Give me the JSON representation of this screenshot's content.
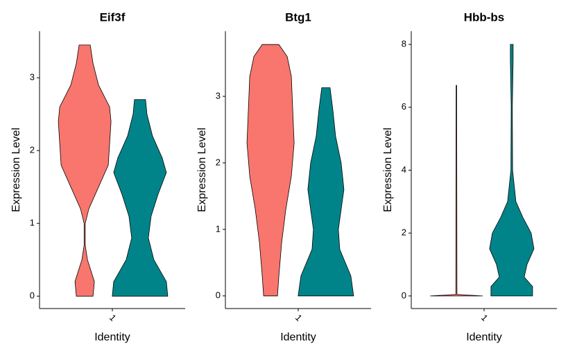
{
  "chart_data": [
    {
      "type": "violin",
      "title": "Eif3f",
      "xlabel": "Identity",
      "ylabel": "Expression Level",
      "categories": [
        "1"
      ],
      "ylim": [
        -0.17,
        3.64
      ],
      "yticks": [
        0,
        1,
        2,
        3
      ],
      "series": [
        {
          "color": "#f8766d",
          "y": [
            0,
            0.2,
            0.5,
            0.7,
            1.0,
            1.2,
            1.5,
            1.8,
            2.1,
            2.4,
            2.6,
            2.9,
            3.2,
            3.45
          ],
          "width": [
            0.3,
            0.35,
            0.1,
            0.02,
            0.02,
            0.15,
            0.5,
            0.85,
            0.9,
            0.95,
            0.9,
            0.5,
            0.3,
            0.2
          ]
        },
        {
          "color": "#00848a",
          "y": [
            0,
            0.2,
            0.5,
            0.8,
            1.1,
            1.4,
            1.7,
            1.9,
            2.2,
            2.5,
            2.7
          ],
          "width": [
            1.0,
            0.95,
            0.5,
            0.3,
            0.4,
            0.65,
            0.95,
            0.8,
            0.45,
            0.25,
            0.2
          ]
        }
      ]
    },
    {
      "type": "violin",
      "title": "Btg1",
      "xlabel": "Identity",
      "ylabel": "Expression Level",
      "categories": [
        "1"
      ],
      "ylim": [
        -0.19,
        3.98
      ],
      "yticks": [
        0,
        1,
        2,
        3
      ],
      "series": [
        {
          "color": "#f8766d",
          "y": [
            0,
            0.3,
            0.8,
            1.3,
            1.8,
            2.3,
            2.8,
            3.3,
            3.6,
            3.78
          ],
          "width": [
            0.25,
            0.3,
            0.4,
            0.55,
            0.75,
            0.85,
            0.8,
            0.75,
            0.6,
            0.3
          ]
        },
        {
          "color": "#00848a",
          "y": [
            0,
            0.3,
            0.7,
            1.0,
            1.3,
            1.6,
            2.0,
            2.4,
            2.8,
            3.13
          ],
          "width": [
            1.0,
            0.9,
            0.5,
            0.45,
            0.55,
            0.65,
            0.55,
            0.35,
            0.25,
            0.15
          ]
        }
      ]
    },
    {
      "type": "violin",
      "title": "Hbb-bs",
      "xlabel": "Identity",
      "ylabel": "Expression Level",
      "categories": [
        "1"
      ],
      "ylim": [
        -0.4,
        8.42
      ],
      "yticks": [
        0,
        2,
        4,
        6,
        8
      ],
      "series": [
        {
          "color": "#f8766d",
          "y": [
            0,
            0.05,
            6.7
          ],
          "width": [
            0.95,
            0.02,
            0.01
          ]
        },
        {
          "color": "#00848a",
          "y": [
            0,
            0.3,
            0.6,
            1.0,
            1.5,
            2.0,
            2.5,
            3.0,
            4.0,
            6.0,
            7.5,
            8
          ],
          "width": [
            0.75,
            0.75,
            0.45,
            0.55,
            0.8,
            0.7,
            0.4,
            0.15,
            0.03,
            0.02,
            0.05,
            0.05
          ]
        }
      ]
    }
  ]
}
